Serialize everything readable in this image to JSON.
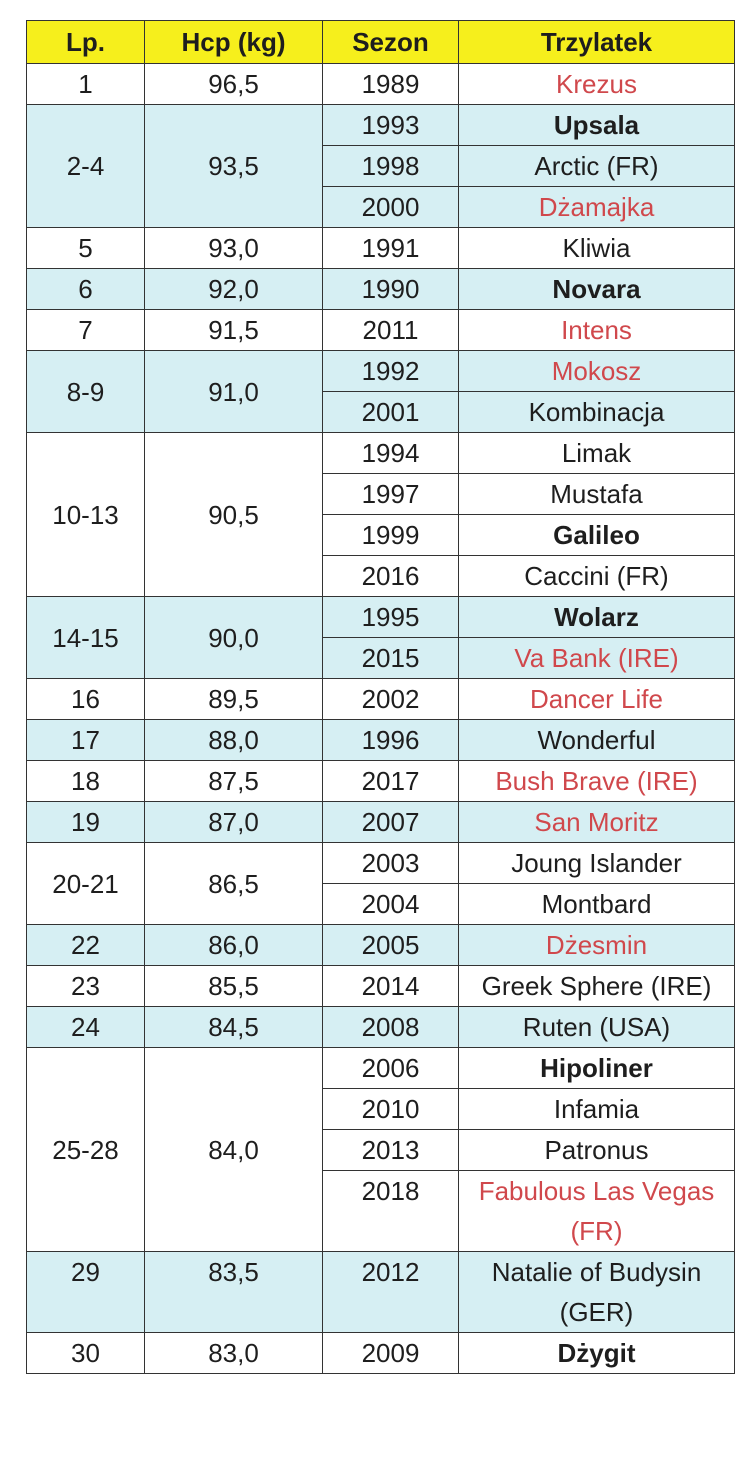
{
  "headers": [
    "Lp.",
    "Hcp (kg)",
    "Sezon",
    "Trzylatek"
  ],
  "groups": [
    {
      "lp": "1",
      "hcp": "96,5",
      "horses": [
        {
          "year": "1989",
          "name": "Krezus",
          "style": "red"
        }
      ]
    },
    {
      "lp": "2-4",
      "hcp": "93,5",
      "horses": [
        {
          "year": "1993",
          "name": "Upsala",
          "style": "bold"
        },
        {
          "year": "1998",
          "name": "Arctic (FR)",
          "style": "normal"
        },
        {
          "year": "2000",
          "name": "Dżamajka",
          "style": "red"
        }
      ]
    },
    {
      "lp": "5",
      "hcp": "93,0",
      "horses": [
        {
          "year": "1991",
          "name": "Kliwia",
          "style": "normal"
        }
      ]
    },
    {
      "lp": "6",
      "hcp": "92,0",
      "horses": [
        {
          "year": "1990",
          "name": "Novara",
          "style": "bold"
        }
      ]
    },
    {
      "lp": "7",
      "hcp": "91,5",
      "horses": [
        {
          "year": "2011",
          "name": "Intens",
          "style": "red"
        }
      ]
    },
    {
      "lp": "8-9",
      "hcp": "91,0",
      "horses": [
        {
          "year": "1992",
          "name": "Mokosz",
          "style": "red"
        },
        {
          "year": "2001",
          "name": "Kombinacja",
          "style": "normal"
        }
      ]
    },
    {
      "lp": "10-13",
      "hcp": "90,5",
      "horses": [
        {
          "year": "1994",
          "name": "Limak",
          "style": "normal"
        },
        {
          "year": "1997",
          "name": "Mustafa",
          "style": "normal"
        },
        {
          "year": "1999",
          "name": "Galileo",
          "style": "bold"
        },
        {
          "year": "2016",
          "name": "Caccini (FR)",
          "style": "normal"
        }
      ]
    },
    {
      "lp": "14-15",
      "hcp": "90,0",
      "horses": [
        {
          "year": "1995",
          "name": "Wolarz",
          "style": "bold"
        },
        {
          "year": "2015",
          "name": "Va Bank (IRE)",
          "style": "red"
        }
      ]
    },
    {
      "lp": "16",
      "hcp": "89,5",
      "horses": [
        {
          "year": "2002",
          "name": "Dancer Life",
          "style": "red"
        }
      ]
    },
    {
      "lp": "17",
      "hcp": "88,0",
      "horses": [
        {
          "year": "1996",
          "name": "Wonderful",
          "style": "normal"
        }
      ]
    },
    {
      "lp": "18",
      "hcp": "87,5",
      "horses": [
        {
          "year": "2017",
          "name": "Bush Brave (IRE)",
          "style": "red"
        }
      ]
    },
    {
      "lp": "19",
      "hcp": "87,0",
      "horses": [
        {
          "year": "2007",
          "name": "San Moritz",
          "style": "red"
        }
      ]
    },
    {
      "lp": "20-21",
      "hcp": "86,5",
      "horses": [
        {
          "year": "2003",
          "name": "Joung Islander",
          "style": "normal"
        },
        {
          "year": "2004",
          "name": "Montbard",
          "style": "normal"
        }
      ]
    },
    {
      "lp": "22",
      "hcp": "86,0",
      "horses": [
        {
          "year": "2005",
          "name": "Dżesmin",
          "style": "red"
        }
      ]
    },
    {
      "lp": "23",
      "hcp": "85,5",
      "valign": "top",
      "horses": [
        {
          "year": "2014",
          "name": "Greek Sphere (IRE)",
          "style": "normal",
          "twoLine": true
        }
      ]
    },
    {
      "lp": "24",
      "hcp": "84,5",
      "horses": [
        {
          "year": "2008",
          "name": "Ruten (USA)",
          "style": "normal"
        }
      ]
    },
    {
      "lp": "25-28",
      "hcp": "84,0",
      "horses": [
        {
          "year": "2006",
          "name": "Hipoliner",
          "style": "bold"
        },
        {
          "year": "2010",
          "name": "Infamia",
          "style": "normal"
        },
        {
          "year": "2013",
          "name": "Patronus",
          "style": "normal"
        },
        {
          "year": "2018",
          "name": "Fabulous Las Vegas (FR)",
          "style": "red",
          "twoLine": true
        }
      ]
    },
    {
      "lp": "29",
      "hcp": "83,5",
      "valign": "top",
      "horses": [
        {
          "year": "2012",
          "name": "Natalie of Budysin (GER)",
          "style": "normal",
          "twoLine": true
        }
      ]
    },
    {
      "lp": "30",
      "hcp": "83,0",
      "horses": [
        {
          "year": "2009",
          "name": "Dżygit",
          "style": "bold"
        }
      ]
    }
  ],
  "colors": {
    "header": "#f6ef1c",
    "band": "#d6eff3",
    "red": "#d0484c"
  }
}
